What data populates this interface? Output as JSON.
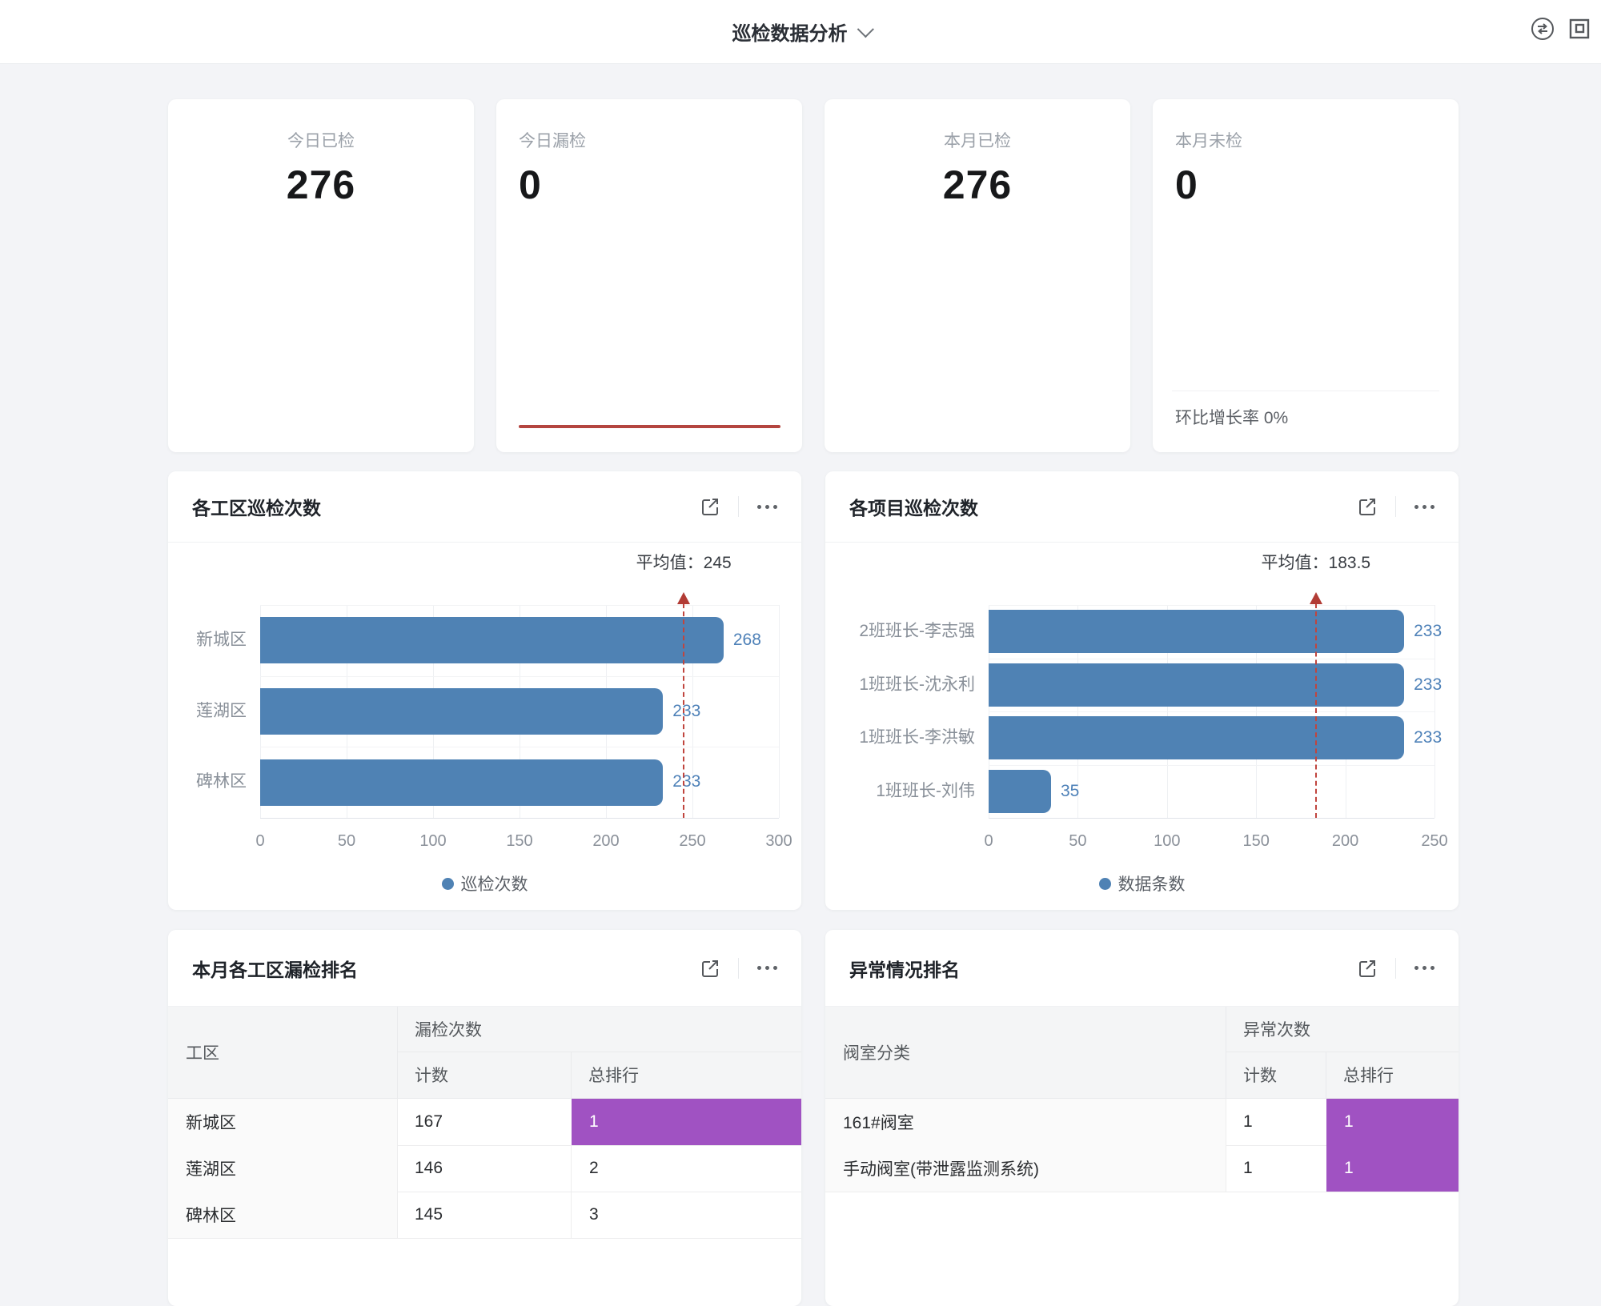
{
  "header": {
    "title": "巡检数据分析"
  },
  "top_icons": {
    "sync": "sync-icon",
    "window": "exit-fullscreen-icon"
  },
  "stats": [
    {
      "label": "今日已检",
      "value": "276"
    },
    {
      "label": "今日漏检",
      "value": "0"
    },
    {
      "label": "本月已检",
      "value": "276"
    },
    {
      "label": "本月未检",
      "value": "0",
      "footer": "环比增长率 0%"
    }
  ],
  "chart_data": [
    {
      "type": "bar",
      "orientation": "horizontal",
      "title": "各工区巡检次数",
      "categories": [
        "新城区",
        "莲湖区",
        "碑林区"
      ],
      "values": [
        268,
        233,
        233
      ],
      "average": 245,
      "average_label": "平均值：245",
      "xlim": [
        0,
        300
      ],
      "ticks": [
        0,
        50,
        100,
        150,
        200,
        250,
        300
      ],
      "legend": "巡检次数",
      "grid": true,
      "legend_position": "bottom-center"
    },
    {
      "type": "bar",
      "orientation": "horizontal",
      "title": "各项目巡检次数",
      "categories": [
        "2班班长-李志强",
        "1班班长-沈永利",
        "1班班长-李洪敏",
        "1班班长-刘伟"
      ],
      "values": [
        233,
        233,
        233,
        35
      ],
      "average": 183.5,
      "average_label": "平均值：183.5",
      "xlim": [
        0,
        250
      ],
      "ticks": [
        0,
        50,
        100,
        150,
        200,
        250
      ],
      "legend": "数据条数",
      "grid": true,
      "legend_position": "bottom-center"
    }
  ],
  "tables": [
    {
      "title": "本月各工区漏检排名",
      "row_header": "工区",
      "group_header": "漏检次数",
      "sub_headers": [
        "计数",
        "总排行"
      ],
      "rows": [
        {
          "name": "新城区",
          "count": "167",
          "rank": "1",
          "highlight": true
        },
        {
          "name": "莲湖区",
          "count": "146",
          "rank": "2",
          "highlight": false
        },
        {
          "name": "碑林区",
          "count": "145",
          "rank": "3",
          "highlight": false
        }
      ]
    },
    {
      "title": "异常情况排名",
      "row_header": "阀室分类",
      "group_header": "异常次数",
      "sub_headers": [
        "计数",
        "总排行"
      ],
      "rows": [
        {
          "name": "161#阀室",
          "count": "1",
          "rank": "1",
          "highlight": true
        },
        {
          "name": "手动阀室(带泄露监测系统)",
          "count": "1",
          "rank": "1",
          "highlight": true
        }
      ]
    }
  ],
  "colors": {
    "bar": "#4f82b4",
    "value_label": "#4e81b8",
    "average_line": "#c0453e",
    "rank_highlight": "#a052c2",
    "red_line": "#b4453f",
    "page_bg": "#f3f4f7"
  }
}
